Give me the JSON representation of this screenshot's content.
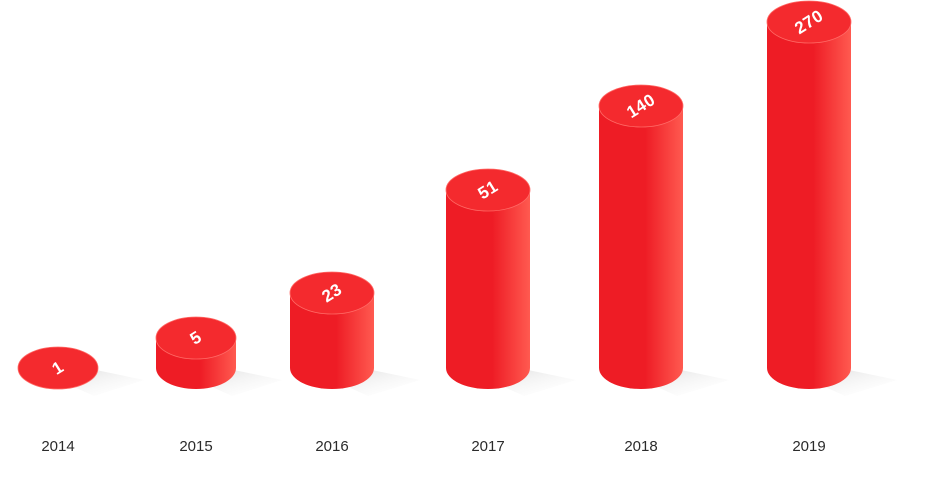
{
  "chart_data": {
    "type": "bar",
    "style": "3d-cylinder",
    "categories": [
      "2014",
      "2015",
      "2016",
      "2017",
      "2018",
      "2019"
    ],
    "values": [
      1,
      5,
      23,
      51,
      140,
      270
    ],
    "value_labels": [
      "1",
      "5",
      "23",
      "51",
      "140",
      "270"
    ],
    "title": "",
    "xlabel": "",
    "ylabel": "",
    "grid": false,
    "legend": "none",
    "colors": {
      "bar": "#ee1c25",
      "bar_light": "#ff5a50",
      "top": "#f42a2e",
      "shadow": "#dcdcdc",
      "value_text": "#ffffff",
      "year_text": "#2b2b2b"
    }
  }
}
